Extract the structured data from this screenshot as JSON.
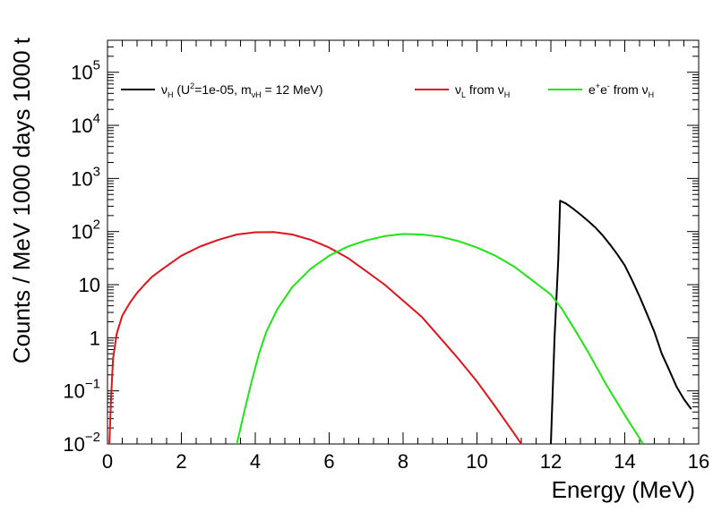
{
  "chart_data": {
    "type": "line",
    "xlabel": "Energy (MeV)",
    "ylabel": "Counts / MeV 1000 days 1000 t",
    "xlim": [
      0,
      16
    ],
    "ylim": [
      0.01,
      400000
    ],
    "yscale": "log",
    "grid": false,
    "legend_position": "top",
    "x_ticks": [
      0,
      2,
      4,
      6,
      8,
      10,
      12,
      14,
      16
    ],
    "x_tick_labels": [
      "0",
      "2",
      "4",
      "6",
      "8",
      "10",
      "12",
      "14",
      "16"
    ],
    "y_ticks": [
      0.01,
      0.1,
      1,
      10,
      100,
      1000,
      10000,
      100000
    ],
    "y_tick_labels": [
      {
        "base": "10",
        "exp": "−2"
      },
      {
        "base": "10",
        "exp": "−1"
      },
      {
        "base": "1",
        "exp": ""
      },
      {
        "base": "10",
        "exp": ""
      },
      {
        "base": "10",
        "exp": "2"
      },
      {
        "base": "10",
        "exp": "3"
      },
      {
        "base": "10",
        "exp": "4"
      },
      {
        "base": "10",
        "exp": "5"
      }
    ],
    "series": [
      {
        "legend": [
          {
            "t": "ν",
            "s": ""
          },
          {
            "t": "H",
            "s": "sub"
          },
          {
            "t": " (U",
            "s": ""
          },
          {
            "t": "2",
            "s": "sup"
          },
          {
            "t": "=1e-05, m",
            "s": ""
          },
          {
            "t": "νH",
            "s": "sub"
          },
          {
            "t": " = 12 MeV)",
            "s": ""
          }
        ],
        "color": "#000000",
        "x": [
          12.0,
          12.1,
          12.2,
          12.25,
          12.4,
          12.6,
          12.8,
          13.0,
          13.2,
          13.4,
          13.6,
          13.8,
          14.0,
          14.2,
          14.4,
          14.6,
          14.8,
          15.0,
          15.2,
          15.4,
          15.6,
          15.8
        ],
        "y": [
          0.01,
          1.0,
          30,
          380,
          340,
          270,
          210,
          160,
          120,
          85,
          57,
          37,
          23,
          12,
          6,
          2.8,
          1.3,
          0.5,
          0.25,
          0.12,
          0.07,
          0.045
        ]
      },
      {
        "legend": [
          {
            "t": "ν",
            "s": ""
          },
          {
            "t": "L",
            "s": "sub"
          },
          {
            "t": " from ν",
            "s": ""
          },
          {
            "t": "H",
            "s": "sub"
          }
        ],
        "color": "#e0151c",
        "x": [
          0.05,
          0.1,
          0.15,
          0.25,
          0.4,
          0.6,
          0.8,
          1.0,
          1.2,
          1.5,
          2.0,
          2.5,
          3.0,
          3.5,
          4.0,
          4.5,
          5.0,
          5.5,
          6.0,
          6.5,
          7.0,
          7.5,
          8.0,
          8.5,
          9.0,
          9.5,
          10.0,
          10.5,
          11.0,
          11.2
        ],
        "y": [
          0.01,
          0.08,
          0.4,
          1.2,
          2.6,
          4.5,
          7.0,
          10,
          14,
          20,
          35,
          52,
          70,
          88,
          97,
          98,
          88,
          70,
          50,
          32,
          18,
          10,
          5,
          2.5,
          1.0,
          0.4,
          0.15,
          0.05,
          0.016,
          0.01
        ]
      },
      {
        "legend": [
          {
            "t": "e",
            "s": ""
          },
          {
            "t": "+",
            "s": "sup"
          },
          {
            "t": "e",
            "s": ""
          },
          {
            "t": "-",
            "s": "sup"
          },
          {
            "t": " from ν",
            "s": ""
          },
          {
            "t": "H",
            "s": "sub"
          }
        ],
        "color": "#1ee614",
        "x": [
          3.5,
          3.7,
          3.9,
          4.1,
          4.3,
          4.6,
          5.0,
          5.5,
          6.0,
          6.5,
          7.0,
          7.5,
          8.0,
          8.5,
          9.0,
          9.5,
          10.0,
          10.5,
          11.0,
          11.5,
          12.0,
          12.3,
          12.6,
          13.0,
          13.5,
          14.0,
          14.5
        ],
        "y": [
          0.01,
          0.04,
          0.15,
          0.5,
          1.3,
          3.5,
          9,
          20,
          35,
          52,
          68,
          82,
          90,
          88,
          80,
          66,
          50,
          35,
          22,
          12,
          6.5,
          3.5,
          1.6,
          0.55,
          0.13,
          0.035,
          0.01
        ]
      }
    ]
  }
}
